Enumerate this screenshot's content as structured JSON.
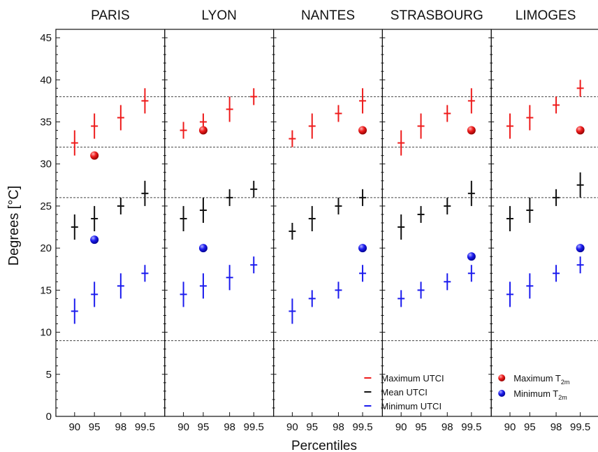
{
  "chart_data": {
    "type": "scatter",
    "ylabel": "Degrees [°C]",
    "xlabel": "Percentiles",
    "ylim": [
      0,
      46
    ],
    "yticks": [
      0,
      5,
      10,
      15,
      20,
      25,
      30,
      35,
      40,
      45
    ],
    "x_categories": [
      "90",
      "95",
      "98",
      "99.5"
    ],
    "reference_lines": [
      9,
      26,
      32,
      38
    ],
    "colors": {
      "max": "#ee1c1c",
      "mean": "#111111",
      "min": "#1c1cee"
    },
    "legend": {
      "max_utci": "Maximum UTCI",
      "mean_utci": "Mean UTCI",
      "min_utci": "Minimum UTCI",
      "max_t2m_main": "Maximum T",
      "min_t2m_main": "Minimum T",
      "t2m_sub": "2m"
    },
    "panels": [
      {
        "title": "PARIS",
        "max_utci": [
          [
            32.5,
            31,
            34
          ],
          [
            34.5,
            33,
            36
          ],
          [
            35.5,
            34,
            37
          ],
          [
            37.5,
            36,
            39
          ]
        ],
        "mean_utci": [
          [
            22.5,
            21,
            24
          ],
          [
            23.5,
            22,
            25
          ],
          [
            25,
            24,
            26
          ],
          [
            26.5,
            25,
            28
          ]
        ],
        "min_utci": [
          [
            12.5,
            11,
            14
          ],
          [
            14.5,
            13,
            16
          ],
          [
            15.5,
            14,
            17
          ],
          [
            17,
            16,
            18
          ]
        ],
        "max_t2m": {
          "x": "95",
          "y": 31
        },
        "min_t2m": {
          "x": "95",
          "y": 21
        }
      },
      {
        "title": "LYON",
        "max_utci": [
          [
            34,
            33,
            35
          ],
          [
            35,
            34,
            36
          ],
          [
            36.5,
            35,
            38
          ],
          [
            38,
            37,
            39
          ]
        ],
        "mean_utci": [
          [
            23.5,
            22,
            25
          ],
          [
            24.5,
            23,
            26
          ],
          [
            26,
            25,
            27
          ],
          [
            27,
            26,
            28
          ]
        ],
        "min_utci": [
          [
            14.5,
            13,
            16
          ],
          [
            15.5,
            14,
            17
          ],
          [
            16.5,
            15,
            18
          ],
          [
            18,
            17,
            19
          ]
        ],
        "max_t2m": {
          "x": "95",
          "y": 34
        },
        "min_t2m": {
          "x": "95",
          "y": 20
        }
      },
      {
        "title": "NANTES",
        "max_utci": [
          [
            33,
            32,
            34
          ],
          [
            34.5,
            33,
            36
          ],
          [
            36,
            35,
            37
          ],
          [
            37.5,
            36,
            39
          ]
        ],
        "mean_utci": [
          [
            22,
            21,
            23
          ],
          [
            23.5,
            22,
            25
          ],
          [
            25,
            24,
            26
          ],
          [
            26,
            25,
            27
          ]
        ],
        "min_utci": [
          [
            12.5,
            11,
            14
          ],
          [
            14,
            13,
            15
          ],
          [
            15,
            14,
            16
          ],
          [
            17,
            16,
            18
          ]
        ],
        "max_t2m": {
          "x": "99.5",
          "y": 34
        },
        "min_t2m": {
          "x": "99.5",
          "y": 20
        }
      },
      {
        "title": "STRASBOURG",
        "max_utci": [
          [
            32.5,
            31,
            34
          ],
          [
            34.5,
            33,
            36
          ],
          [
            36,
            35,
            37
          ],
          [
            37.5,
            36,
            39
          ]
        ],
        "mean_utci": [
          [
            22.5,
            21,
            24
          ],
          [
            24,
            23,
            25
          ],
          [
            25,
            24,
            26
          ],
          [
            26.5,
            25,
            28
          ]
        ],
        "min_utci": [
          [
            14,
            13,
            15
          ],
          [
            15,
            14,
            16
          ],
          [
            16,
            15,
            17
          ],
          [
            17,
            16,
            18
          ]
        ],
        "max_t2m": {
          "x": "99.5",
          "y": 34
        },
        "min_t2m": {
          "x": "99.5",
          "y": 19
        }
      },
      {
        "title": "LIMOGES",
        "max_utci": [
          [
            34.5,
            33,
            36
          ],
          [
            35.5,
            34,
            37
          ],
          [
            37,
            36,
            38
          ],
          [
            39,
            38,
            40
          ]
        ],
        "mean_utci": [
          [
            23.5,
            22,
            25
          ],
          [
            24.5,
            23,
            26
          ],
          [
            26,
            25,
            27
          ],
          [
            27.5,
            26,
            29
          ]
        ],
        "min_utci": [
          [
            14.5,
            13,
            16
          ],
          [
            15.5,
            14,
            17
          ],
          [
            17,
            16,
            18
          ],
          [
            18,
            17,
            19
          ]
        ],
        "max_t2m": {
          "x": "99.5",
          "y": 34
        },
        "min_t2m": {
          "x": "99.5",
          "y": 20
        }
      }
    ]
  }
}
